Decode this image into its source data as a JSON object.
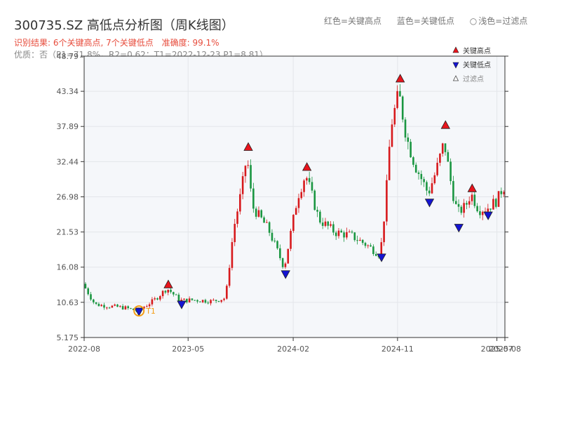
{
  "header": {
    "title": "300735.SZ 高低点分析图（周K线图）",
    "legend_red": "红色=关键高点",
    "legend_blue": "蓝色=关键低点",
    "legend_light_symbol": "○",
    "legend_light": "浅色=过滤点"
  },
  "summary": {
    "result": "识别结果: 6个关键高点, 7个关键低点",
    "accuracy": "准确度: 99.1%",
    "quality": "优质：否（P1=71.8%，R2=0.62；T1=2022-12-23 P1=8.81）"
  },
  "colors": {
    "up": "#d7191c",
    "down": "#1a9641",
    "high_marker": "#e8141c",
    "low_marker": "#1414d2",
    "t1_ring": "#f39c12",
    "grid": "#e3e6ea",
    "plot_bg": "#f5f7fa"
  },
  "chart_data": {
    "type": "candlestick",
    "title": "300735.SZ 高低点分析图（周K线图）",
    "ylim": [
      5.175,
      48.79
    ],
    "y_ticks": [
      "5.175",
      "10.63",
      "16.08",
      "21.53",
      "26.98",
      "32.44",
      "37.89",
      "43.34",
      "48.79"
    ],
    "x_range": [
      "2022-08-01",
      "2025-08-10"
    ],
    "x_ticks": [
      {
        "date": "2022-08-01",
        "label": "2022-08"
      },
      {
        "date": "2023-05-01",
        "label": "2023-05"
      },
      {
        "date": "2024-02-01",
        "label": "2024-02"
      },
      {
        "date": "2024-11-01",
        "label": "2024-11"
      },
      {
        "date": "2025-07-20",
        "label": "2025-07"
      },
      {
        "date": "2025-08-10",
        "label": "2025-08"
      }
    ],
    "grid": true,
    "legend_placement": "top-right",
    "legend": [
      {
        "symbol": "high",
        "label": "关键高点"
      },
      {
        "symbol": "low",
        "label": "关键低点"
      },
      {
        "symbol": "filtered",
        "label": "过滤点"
      }
    ],
    "key_points": [
      {
        "date": "2022-12-23",
        "type": "low",
        "price": 9.3,
        "label": "T1"
      },
      {
        "date": "2023-03-10",
        "type": "high",
        "price": 13.3,
        "label": ""
      },
      {
        "date": "2023-04-14",
        "type": "low",
        "price": 10.4,
        "label": ""
      },
      {
        "date": "2023-10-06",
        "type": "high",
        "price": 34.6,
        "label": ""
      },
      {
        "date": "2024-01-12",
        "type": "low",
        "price": 15.1,
        "label": ""
      },
      {
        "date": "2024-03-08",
        "type": "high",
        "price": 31.5,
        "label": ""
      },
      {
        "date": "2024-09-20",
        "type": "low",
        "price": 17.7,
        "label": ""
      },
      {
        "date": "2024-11-08",
        "type": "high",
        "price": 45.2,
        "label": ""
      },
      {
        "date": "2025-01-24",
        "type": "low",
        "price": 26.2,
        "label": ""
      },
      {
        "date": "2025-03-07",
        "type": "high",
        "price": 38.0,
        "label": ""
      },
      {
        "date": "2025-04-11",
        "type": "low",
        "price": 22.3,
        "label": ""
      },
      {
        "date": "2025-05-16",
        "type": "high",
        "price": 28.2,
        "label": ""
      },
      {
        "date": "2025-06-27",
        "type": "low",
        "price": 24.2,
        "label": ""
      }
    ],
    "anchors": [
      [
        "2022-08-01",
        13.5
      ],
      [
        "2022-09-02",
        10.3
      ],
      [
        "2022-10-14",
        10.0
      ],
      [
        "2022-11-18",
        9.8
      ],
      [
        "2022-12-23",
        9.3
      ],
      [
        "2023-02-03",
        10.9
      ],
      [
        "2023-03-10",
        12.8
      ],
      [
        "2023-04-14",
        10.9
      ],
      [
        "2023-05-19",
        11.0
      ],
      [
        "2023-07-07",
        10.8
      ],
      [
        "2023-08-11",
        11.3
      ],
      [
        "2023-09-01",
        22.0
      ],
      [
        "2023-09-22",
        28.0
      ],
      [
        "2023-10-06",
        33.5
      ],
      [
        "2023-10-20",
        25.5
      ],
      [
        "2023-12-01",
        22.0
      ],
      [
        "2024-01-12",
        16.0
      ],
      [
        "2024-02-16",
        27.0
      ],
      [
        "2024-03-08",
        30.5
      ],
      [
        "2024-04-12",
        23.5
      ],
      [
        "2024-05-24",
        21.5
      ],
      [
        "2024-07-05",
        21.0
      ],
      [
        "2024-08-16",
        19.5
      ],
      [
        "2024-09-20",
        18.0
      ],
      [
        "2024-10-04",
        26.0
      ],
      [
        "2024-10-18",
        38.0
      ],
      [
        "2024-11-08",
        43.0
      ],
      [
        "2024-11-29",
        36.0
      ],
      [
        "2024-12-20",
        32.0
      ],
      [
        "2025-01-24",
        27.5
      ],
      [
        "2025-02-14",
        31.0
      ],
      [
        "2025-03-07",
        35.5
      ],
      [
        "2025-03-28",
        28.0
      ],
      [
        "2025-04-11",
        24.5
      ],
      [
        "2025-05-02",
        25.5
      ],
      [
        "2025-05-16",
        27.5
      ],
      [
        "2025-06-06",
        25.0
      ],
      [
        "2025-06-27",
        25.2
      ],
      [
        "2025-07-25",
        26.5
      ],
      [
        "2025-08-08",
        28.5
      ]
    ]
  }
}
